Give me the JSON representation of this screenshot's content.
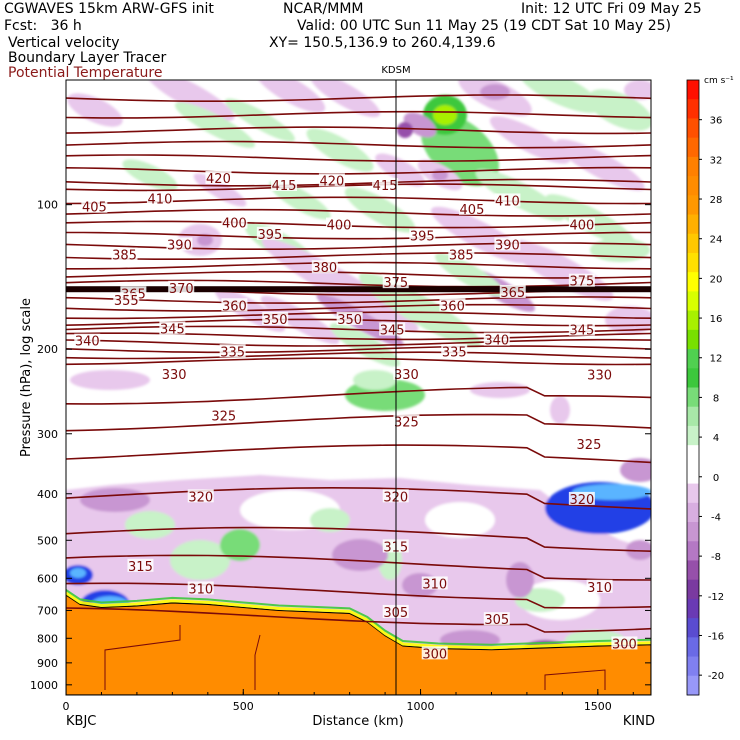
{
  "header": {
    "model": "CGWAVES 15km ARW-GFS init",
    "fcst": "Fcst:   36 h",
    "producer": "NCAR/MMM",
    "init": "Init: 12 UTC Fri 09 May 25",
    "valid": "Valid: 00 UTC Sun 11 May 25 (19 CDT Sat 10 May 25)",
    "xy": "XY= 150.5,136.9 to 260.4,139.6",
    "field1": "Vertical velocity",
    "field2": "Boundary Layer Tracer",
    "field3": "Potential Temperature",
    "station_mid": "KDSM"
  },
  "colors": {
    "theta": "#7a0a0a",
    "terrain": "#ff8c00",
    "up_light": "#c8f2c8",
    "up_mid": "#78dc78",
    "up_strong": "#3cc83c",
    "down_light": "#e8c8ec",
    "down_mid": "#c896d2",
    "down_strong": "#9650aa",
    "blue_strong": "#2040e6",
    "blue_light": "#5ab4ff"
  },
  "chart_data": {
    "type": "cross-section",
    "xlabel": "Distance (km)",
    "ylabel": "Pressure (hPa), log scale",
    "x_ticks": [
      "0",
      "500",
      "1000",
      "1500"
    ],
    "x_range": [
      0,
      1650
    ],
    "y_ticks": [
      "100",
      "200",
      "300",
      "400",
      "500",
      "600",
      "700",
      "800",
      "900",
      "1000"
    ],
    "y_range_hPa": [
      1050,
      55
    ],
    "left_station": "KBJC",
    "right_station": "KIND",
    "center_line_km": 930,
    "colorbar": {
      "units": "cm s⁻¹",
      "ticks": [
        "36",
        "32",
        "28",
        "24",
        "20",
        "16",
        "12",
        "8",
        "4",
        "0",
        "-4",
        "-8",
        "-12",
        "-16",
        "-20"
      ],
      "levels": [
        40,
        38,
        36,
        34,
        32,
        30,
        28,
        26,
        24,
        22,
        20,
        18,
        16,
        14,
        12,
        10,
        8,
        6,
        4,
        2,
        0,
        -2,
        -4,
        -6,
        -8,
        -10,
        -12,
        -14,
        -16,
        -18,
        -20,
        -22
      ],
      "colors": [
        "#ff1000",
        "#ff3000",
        "#ff5000",
        "#ff6800",
        "#ff8000",
        "#ff8c00",
        "#ff9800",
        "#ffb000",
        "#ffc800",
        "#ffe000",
        "#ffff00",
        "#d8ff00",
        "#a8f000",
        "#78e000",
        "#50d050",
        "#3cc83c",
        "#78dc78",
        "#a8e8a8",
        "#c8f2c8",
        "#ffffff",
        "#ffffff",
        "#e8c8ec",
        "#d8aee0",
        "#c896d2",
        "#b478c4",
        "#9650aa",
        "#7a3aa0",
        "#6a3ab4",
        "#5a4cd0",
        "#6a6ae6",
        "#8080f0",
        "#9898f8"
      ]
    },
    "theta_labels": [
      {
        "text": "420",
        "km": 430,
        "p": 88
      },
      {
        "text": "420",
        "km": 750,
        "p": 89
      },
      {
        "text": "415",
        "km": 615,
        "p": 91
      },
      {
        "text": "415",
        "km": 900,
        "p": 91
      },
      {
        "text": "410",
        "km": 265,
        "p": 97
      },
      {
        "text": "410",
        "km": 1245,
        "p": 98
      },
      {
        "text": "405",
        "km": 80,
        "p": 101
      },
      {
        "text": "405",
        "km": 1145,
        "p": 102
      },
      {
        "text": "400",
        "km": 475,
        "p": 109
      },
      {
        "text": "400",
        "km": 770,
        "p": 110
      },
      {
        "text": "400",
        "km": 1455,
        "p": 110
      },
      {
        "text": "395",
        "km": 575,
        "p": 115
      },
      {
        "text": "395",
        "km": 1005,
        "p": 116
      },
      {
        "text": "390",
        "km": 320,
        "p": 121
      },
      {
        "text": "390",
        "km": 1245,
        "p": 121
      },
      {
        "text": "385",
        "km": 165,
        "p": 127
      },
      {
        "text": "385",
        "km": 1115,
        "p": 127
      },
      {
        "text": "380",
        "km": 730,
        "p": 135
      },
      {
        "text": "375",
        "km": 930,
        "p": 145
      },
      {
        "text": "375",
        "km": 1455,
        "p": 144
      },
      {
        "text": "370",
        "km": 325,
        "p": 149
      },
      {
        "text": "365",
        "km": 190,
        "p": 153
      },
      {
        "text": "365",
        "km": 1260,
        "p": 152
      },
      {
        "text": "360",
        "km": 475,
        "p": 162
      },
      {
        "text": "360",
        "km": 1090,
        "p": 162
      },
      {
        "text": "355",
        "km": 170,
        "p": 158
      },
      {
        "text": "350",
        "km": 590,
        "p": 173
      },
      {
        "text": "350",
        "km": 800,
        "p": 173
      },
      {
        "text": "345",
        "km": 300,
        "p": 181
      },
      {
        "text": "345",
        "km": 920,
        "p": 182
      },
      {
        "text": "345",
        "km": 1455,
        "p": 182
      },
      {
        "text": "340",
        "km": 60,
        "p": 192
      },
      {
        "text": "340",
        "km": 1215,
        "p": 191
      },
      {
        "text": "335",
        "km": 470,
        "p": 202
      },
      {
        "text": "335",
        "km": 1095,
        "p": 202
      },
      {
        "text": "330",
        "km": 305,
        "p": 225
      },
      {
        "text": "330",
        "km": 960,
        "p": 225
      },
      {
        "text": "330",
        "km": 1505,
        "p": 226
      },
      {
        "text": "325",
        "km": 445,
        "p": 275
      },
      {
        "text": "325",
        "km": 960,
        "p": 283
      },
      {
        "text": "325",
        "km": 1475,
        "p": 315
      },
      {
        "text": "320",
        "km": 380,
        "p": 405
      },
      {
        "text": "320",
        "km": 930,
        "p": 405
      },
      {
        "text": "320",
        "km": 1455,
        "p": 410
      },
      {
        "text": "315",
        "km": 210,
        "p": 565
      },
      {
        "text": "315",
        "km": 930,
        "p": 515
      },
      {
        "text": "310",
        "km": 380,
        "p": 630
      },
      {
        "text": "310",
        "km": 1040,
        "p": 615
      },
      {
        "text": "310",
        "km": 1505,
        "p": 625
      },
      {
        "text": "305",
        "km": 930,
        "p": 705
      },
      {
        "text": "305",
        "km": 1215,
        "p": 730
      },
      {
        "text": "300",
        "km": 1040,
        "p": 860
      },
      {
        "text": "300",
        "km": 1575,
        "p": 820
      }
    ],
    "terrain_surface": [
      [
        0,
        650
      ],
      [
        40,
        680
      ],
      [
        100,
        690
      ],
      [
        200,
        685
      ],
      [
        300,
        675
      ],
      [
        400,
        680
      ],
      [
        500,
        690
      ],
      [
        600,
        700
      ],
      [
        700,
        705
      ],
      [
        800,
        710
      ],
      [
        850,
        740
      ],
      [
        900,
        790
      ],
      [
        950,
        830
      ],
      [
        1050,
        840
      ],
      [
        1200,
        845
      ],
      [
        1300,
        840
      ],
      [
        1400,
        835
      ],
      [
        1500,
        830
      ],
      [
        1650,
        825
      ]
    ]
  }
}
